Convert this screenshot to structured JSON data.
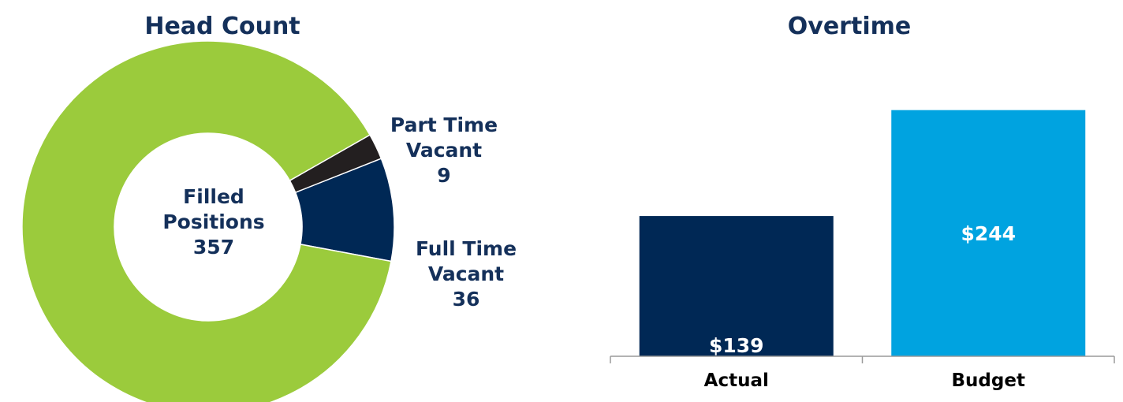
{
  "chart_data": [
    {
      "type": "pie",
      "title": "Head Count",
      "slices": [
        {
          "label_lines": [
            "Filled",
            "Positions",
            "357"
          ],
          "value": 357,
          "color": "#9bcb3c"
        },
        {
          "label_lines": [
            "Full Time",
            "Vacant",
            "36"
          ],
          "value": 36,
          "color": "#002855"
        },
        {
          "label_lines": [
            "Part Time",
            "Vacant",
            "9"
          ],
          "value": 9,
          "color": "#231f20"
        }
      ]
    },
    {
      "type": "bar",
      "title": "Overtime",
      "categories": [
        "Actual",
        "Budget"
      ],
      "values": [
        139,
        244
      ],
      "value_labels": [
        "$139",
        "$244"
      ],
      "colors": [
        "#002855",
        "#00a3e0"
      ],
      "ylim": [
        0,
        275
      ]
    }
  ]
}
